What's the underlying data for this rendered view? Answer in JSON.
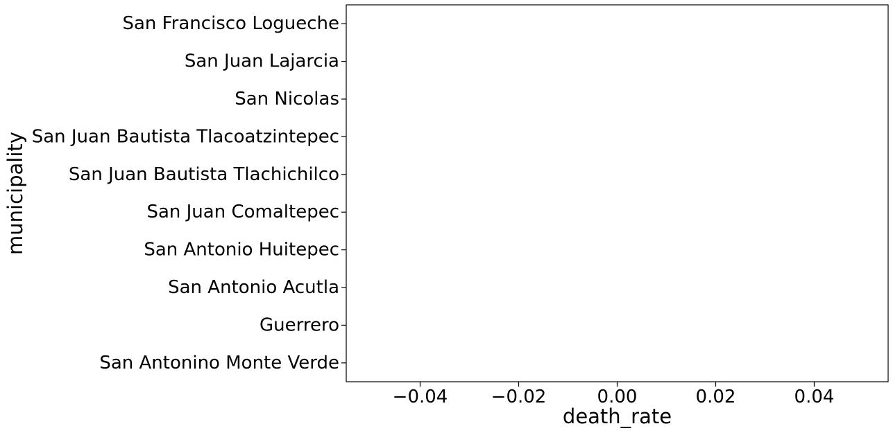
{
  "chart_data": {
    "type": "bar",
    "orientation": "horizontal",
    "title": "",
    "xlabel": "death_rate",
    "ylabel": "municipality",
    "categories": [
      "San Francisco Logueche",
      "San Juan Lajarcia",
      "San Nicolas",
      "San Juan Bautista Tlacoatzintepec",
      "San Juan Bautista Tlachichilco",
      "San Juan Comaltepec",
      "San Antonio Huitepec",
      "San Antonio Acutla",
      "Guerrero",
      "San Antonino Monte Verde"
    ],
    "values": [
      0,
      0,
      0,
      0,
      0,
      0,
      0,
      0,
      0,
      0
    ],
    "xlim": [
      -0.055,
      0.055
    ],
    "xticks": [
      -0.04,
      -0.02,
      0.0,
      0.02,
      0.04
    ],
    "xtick_labels": [
      "−0.04",
      "−0.02",
      "0.00",
      "0.02",
      "0.04"
    ],
    "grid": false,
    "legend": "none",
    "colors": {
      "axis": "#000000",
      "background": "#ffffff",
      "bar": "#1f77b4"
    }
  }
}
